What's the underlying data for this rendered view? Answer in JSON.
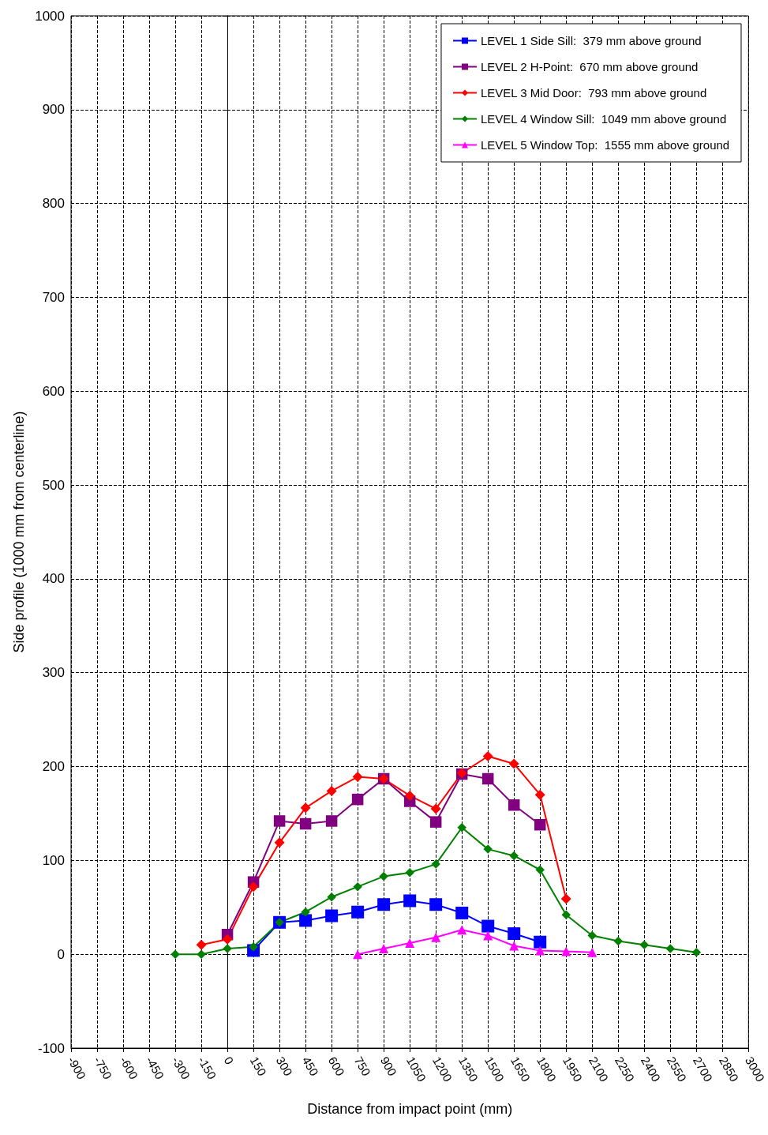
{
  "chart_data": {
    "type": "line",
    "xlabel": "Distance from impact point (mm)",
    "ylabel": "Side profile (1000 mm from centerline)",
    "xlim": [
      -900,
      3000
    ],
    "xticks": [
      -900,
      -750,
      -600,
      -450,
      -300,
      -150,
      0,
      150,
      300,
      450,
      600,
      750,
      900,
      1050,
      1200,
      1350,
      1500,
      1650,
      1800,
      1950,
      2100,
      2250,
      2400,
      2550,
      2700,
      2850,
      3000
    ],
    "ylim": [
      -100,
      1000
    ],
    "yticks": [
      -100,
      0,
      100,
      200,
      300,
      400,
      500,
      600,
      700,
      800,
      900,
      1000
    ],
    "grid": true,
    "legend": "top right",
    "line_style": "solid",
    "series": [
      {
        "name": "LEVEL 1 Side Sill:  379 mm above ground",
        "color": "#0000ff",
        "marker": "square",
        "x": [
          150,
          300,
          450,
          600,
          750,
          900,
          1050,
          1200,
          1350,
          1500,
          1650,
          1800
        ],
        "values": [
          4,
          34,
          36,
          41,
          45,
          53,
          57,
          53,
          44,
          30,
          22,
          13
        ]
      },
      {
        "name": "LEVEL 2 H-Point:  670 mm above ground",
        "color": "#800080",
        "marker": "square",
        "x": [
          0,
          150,
          300,
          450,
          600,
          750,
          900,
          1050,
          1200,
          1350,
          1500,
          1650,
          1800
        ],
        "values": [
          21,
          77,
          142,
          139,
          142,
          165,
          187,
          163,
          141,
          192,
          187,
          159,
          138
        ]
      },
      {
        "name": "LEVEL 3 Mid Door:  793 mm above ground",
        "color": "#ff0000",
        "marker": "diamond",
        "x": [
          -150,
          0,
          150,
          300,
          450,
          600,
          750,
          900,
          1050,
          1200,
          1350,
          1500,
          1650,
          1800,
          1950
        ],
        "values": [
          10,
          16,
          72,
          119,
          156,
          174,
          189,
          187,
          169,
          155,
          193,
          211,
          203,
          170,
          59
        ]
      },
      {
        "name": "LEVEL 4 Window Sill:  1049 mm above ground",
        "color": "#008000",
        "marker": "diamond",
        "x": [
          -300,
          -150,
          0,
          150,
          300,
          450,
          600,
          750,
          900,
          1050,
          1200,
          1350,
          1500,
          1650,
          1800,
          1950,
          2100,
          2250,
          2400,
          2550,
          2700
        ],
        "values": [
          0,
          0,
          6,
          8,
          34,
          45,
          61,
          72,
          83,
          87,
          96,
          135,
          112,
          105,
          90,
          42,
          20,
          14,
          10,
          6,
          2
        ]
      },
      {
        "name": "LEVEL 5 Window Top:  1555 mm above ground",
        "color": "#ff00ff",
        "marker": "triangle",
        "x": [
          750,
          900,
          1050,
          1200,
          1350,
          1500,
          1650,
          1800,
          1950,
          2100
        ],
        "values": [
          0,
          6,
          12,
          18,
          26,
          20,
          9,
          4,
          3,
          2
        ]
      }
    ]
  }
}
